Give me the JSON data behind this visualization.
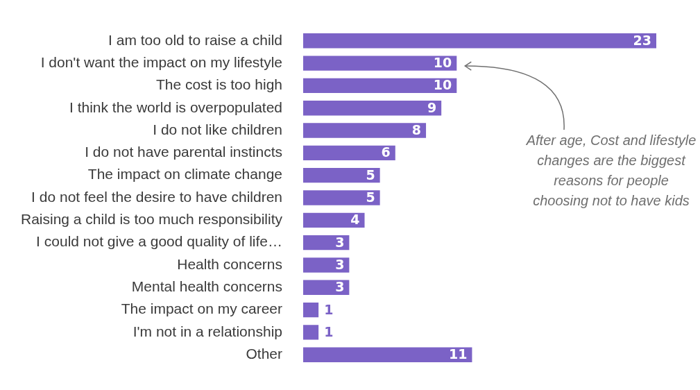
{
  "chart_data": {
    "type": "bar",
    "orientation": "horizontal",
    "categories": [
      "I am too old to raise a child",
      "I don't want the impact on my lifestyle",
      "The cost is too high",
      "I think the world is overpopulated",
      "I do not like children",
      "I do not have parental instincts",
      "The impact on climate change",
      "I do not feel the desire to have children",
      "Raising a child is too much responsibility",
      "I could not give a good quality of life…",
      "Health concerns",
      "Mental health concerns",
      "The impact on my career",
      "I'm not in a relationship",
      "Other"
    ],
    "values": [
      23,
      10,
      10,
      9,
      8,
      6,
      5,
      5,
      4,
      3,
      3,
      3,
      1,
      1,
      11
    ],
    "color": "#7b62c6",
    "data_labels": true,
    "legend": false,
    "annotations": [
      "After age, Cost and lifestyle changes are the biggest reasons for people choosing not to have kids"
    ]
  }
}
